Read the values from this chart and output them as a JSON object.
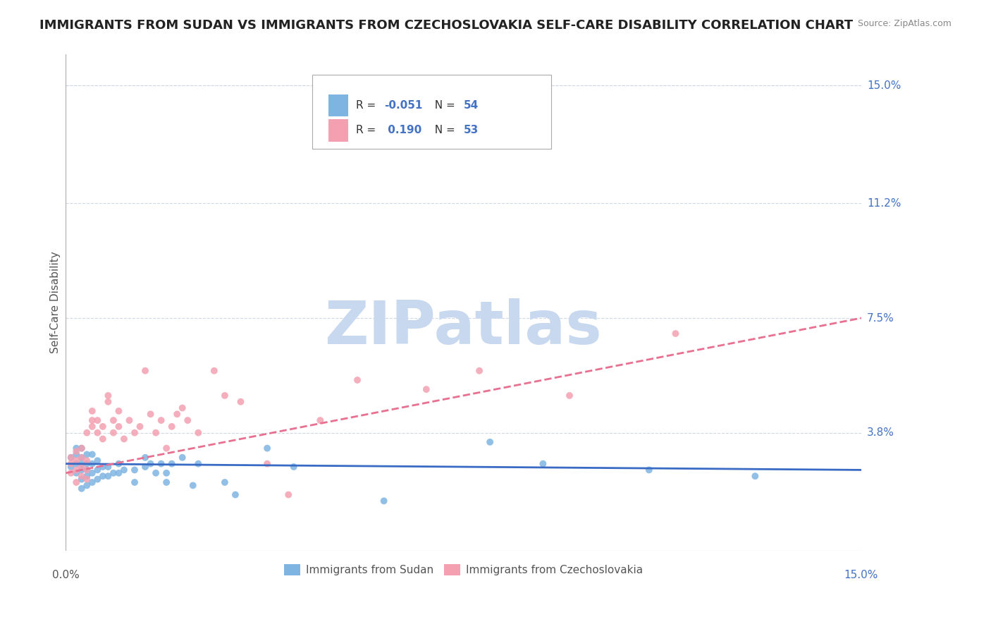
{
  "title": "IMMIGRANTS FROM SUDAN VS IMMIGRANTS FROM CZECHOSLOVAKIA SELF-CARE DISABILITY CORRELATION CHART",
  "source": "Source: ZipAtlas.com",
  "xlabel_ticks": [
    "0.0%",
    "15.0%"
  ],
  "ylabel_label": "Self-Care Disability",
  "right_ytick_labels": [
    "15.0%",
    "11.2%",
    "7.5%",
    "3.8%"
  ],
  "right_ytick_values": [
    0.15,
    0.112,
    0.075,
    0.038
  ],
  "xmin": 0.0,
  "xmax": 0.15,
  "ymin": 0.0,
  "ymax": 0.16,
  "legend_r1": "R = -0.051",
  "legend_n1": "N = 54",
  "legend_r2": "R =  0.190",
  "legend_n2": "N = 53",
  "color_sudan": "#7eb4e2",
  "color_czech": "#f4a0b0",
  "color_line_sudan": "#3a6bc4",
  "color_line_czech": "#e87090",
  "watermark": "ZIPatlas",
  "watermark_color": "#c8d8ee",
  "background_color": "#ffffff",
  "grid_color": "#d0d8e8",
  "label_color": "#4472c4",
  "sudan_x": [
    0.001,
    0.001,
    0.002,
    0.002,
    0.002,
    0.002,
    0.003,
    0.003,
    0.003,
    0.003,
    0.003,
    0.003,
    0.004,
    0.004,
    0.004,
    0.004,
    0.004,
    0.005,
    0.005,
    0.005,
    0.005,
    0.006,
    0.006,
    0.006,
    0.007,
    0.007,
    0.008,
    0.008,
    0.009,
    0.01,
    0.01,
    0.011,
    0.013,
    0.013,
    0.015,
    0.015,
    0.016,
    0.017,
    0.018,
    0.019,
    0.019,
    0.02,
    0.022,
    0.024,
    0.025,
    0.03,
    0.032,
    0.038,
    0.043,
    0.06,
    0.08,
    0.09,
    0.11,
    0.13
  ],
  "sudan_y": [
    0.027,
    0.03,
    0.025,
    0.028,
    0.031,
    0.033,
    0.02,
    0.023,
    0.026,
    0.028,
    0.03,
    0.033,
    0.021,
    0.024,
    0.026,
    0.028,
    0.031,
    0.022,
    0.025,
    0.028,
    0.031,
    0.023,
    0.026,
    0.029,
    0.024,
    0.027,
    0.024,
    0.027,
    0.025,
    0.025,
    0.028,
    0.026,
    0.026,
    0.022,
    0.03,
    0.027,
    0.028,
    0.025,
    0.028,
    0.022,
    0.025,
    0.028,
    0.03,
    0.021,
    0.028,
    0.022,
    0.018,
    0.033,
    0.027,
    0.016,
    0.035,
    0.028,
    0.026,
    0.024
  ],
  "czech_x": [
    0.001,
    0.001,
    0.001,
    0.002,
    0.002,
    0.002,
    0.002,
    0.003,
    0.003,
    0.003,
    0.003,
    0.004,
    0.004,
    0.004,
    0.004,
    0.005,
    0.005,
    0.005,
    0.006,
    0.006,
    0.007,
    0.007,
    0.008,
    0.008,
    0.009,
    0.009,
    0.01,
    0.01,
    0.011,
    0.012,
    0.013,
    0.014,
    0.015,
    0.016,
    0.017,
    0.018,
    0.019,
    0.02,
    0.021,
    0.022,
    0.023,
    0.025,
    0.028,
    0.03,
    0.033,
    0.038,
    0.042,
    0.048,
    0.055,
    0.068,
    0.078,
    0.095,
    0.115
  ],
  "czech_y": [
    0.025,
    0.028,
    0.03,
    0.022,
    0.026,
    0.029,
    0.032,
    0.024,
    0.027,
    0.03,
    0.033,
    0.023,
    0.026,
    0.029,
    0.038,
    0.04,
    0.042,
    0.045,
    0.038,
    0.042,
    0.036,
    0.04,
    0.048,
    0.05,
    0.038,
    0.042,
    0.04,
    0.045,
    0.036,
    0.042,
    0.038,
    0.04,
    0.058,
    0.044,
    0.038,
    0.042,
    0.033,
    0.04,
    0.044,
    0.046,
    0.042,
    0.038,
    0.058,
    0.05,
    0.048,
    0.028,
    0.018,
    0.042,
    0.055,
    0.052,
    0.058,
    0.05,
    0.07
  ],
  "sudan_line_x": [
    0.0,
    0.15
  ],
  "sudan_line_y": [
    0.028,
    0.026
  ],
  "czech_line_x": [
    0.0,
    0.15
  ],
  "czech_line_y": [
    0.025,
    0.075
  ]
}
